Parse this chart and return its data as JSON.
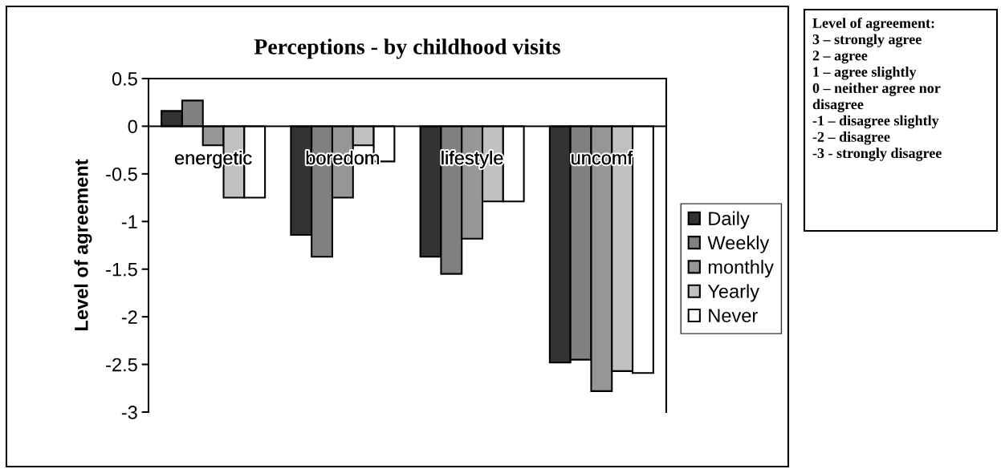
{
  "chart_data": {
    "type": "bar",
    "title": "Perceptions - by childhood visits",
    "ylabel": "Level of agreement",
    "categories": [
      "energetic",
      "boredom",
      "lifestyle",
      "uncomf"
    ],
    "series": [
      {
        "name": "Daily",
        "color": "#333333",
        "values": [
          0.16,
          -1.14,
          -1.37,
          -2.48
        ]
      },
      {
        "name": "Weekly",
        "color": "#808080",
        "values": [
          0.27,
          -1.37,
          -1.55,
          -2.45
        ]
      },
      {
        "name": "monthly",
        "color": "#969696",
        "values": [
          -0.2,
          -0.75,
          -1.18,
          -2.78
        ]
      },
      {
        "name": "Yearly",
        "color": "#c0c0c0",
        "values": [
          -0.75,
          -0.2,
          -0.79,
          -2.57
        ]
      },
      {
        "name": "Never",
        "color": "#ffffff",
        "values": [
          -0.75,
          -0.37,
          -0.79,
          -2.59
        ]
      }
    ],
    "ylim": [
      -3,
      0.5
    ],
    "yticks": [
      {
        "value": 0.5,
        "label": "0.5"
      },
      0,
      {
        "value": -0.5,
        "label": "-0.5"
      },
      -1,
      {
        "value": -1.5,
        "label": "-1.5"
      },
      -2,
      {
        "value": -2.5,
        "label": "-2.5"
      },
      -3
    ],
    "grid": false,
    "legend": "right",
    "annotations": [
      "Level of agreement:\n3 – strongly agree\n2 – agree\n1 – agree slightly\n0 – neither agree nor\ndisagree\n-1 – disagree slightly\n-2 – disagree\n-3 - strongly disagree"
    ]
  }
}
